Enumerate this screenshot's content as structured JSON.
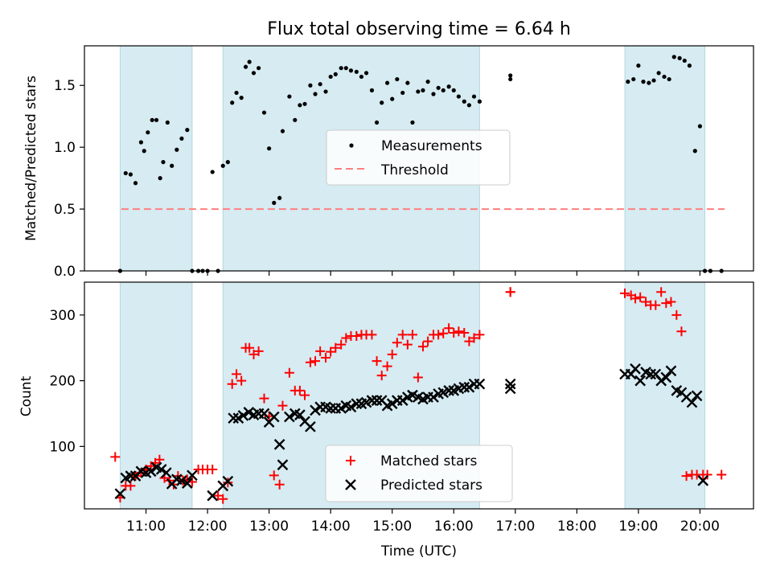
{
  "title": "Flux total observing time = 6.64 h",
  "chart_data": [
    {
      "type": "scatter",
      "panel": "top",
      "ylabel": "Matched/Predicted stars",
      "ylim": [
        0,
        1.82
      ],
      "yticks": [
        0.0,
        0.5,
        1.0,
        1.5
      ],
      "ytick_labels": [
        "0.0",
        "0.5",
        "1.0",
        "1.5"
      ],
      "threshold": {
        "value": 0.5,
        "x_start": 10.6,
        "x_end": 20.4,
        "color": "#ff7f7f"
      },
      "legend": {
        "position": "center",
        "entries": [
          {
            "label": "Measurements",
            "marker": "dot"
          },
          {
            "label": "Threshold",
            "marker": "dashed-line"
          }
        ]
      },
      "series": [
        {
          "name": "Measurements",
          "color": "#000000",
          "marker": "dot",
          "x": [
            10.58,
            10.67,
            10.75,
            10.83,
            10.92,
            10.97,
            11.03,
            11.1,
            11.17,
            11.23,
            11.28,
            11.35,
            11.42,
            11.5,
            11.58,
            11.67,
            11.75,
            11.85,
            11.92,
            12.0,
            12.08,
            12.17,
            12.25,
            12.33,
            12.4,
            12.47,
            12.55,
            12.62,
            12.68,
            12.75,
            12.83,
            12.92,
            13.0,
            13.08,
            13.17,
            13.22,
            13.33,
            13.42,
            13.5,
            13.58,
            13.67,
            13.75,
            13.83,
            13.92,
            14.0,
            14.08,
            14.17,
            14.25,
            14.33,
            14.42,
            14.5,
            14.58,
            14.67,
            14.75,
            14.83,
            14.92,
            15.0,
            15.08,
            15.17,
            15.25,
            15.33,
            15.42,
            15.5,
            15.58,
            15.67,
            15.75,
            15.83,
            15.92,
            16.0,
            16.08,
            16.17,
            16.25,
            16.33,
            16.42,
            16.92,
            16.92,
            18.83,
            18.92,
            19.0,
            19.08,
            19.17,
            19.25,
            19.33,
            19.42,
            19.5,
            19.58,
            19.67,
            19.75,
            19.83,
            19.92,
            20.0,
            20.08,
            20.17,
            20.35
          ],
          "y": [
            0.0,
            0.79,
            0.78,
            0.71,
            1.04,
            0.97,
            1.12,
            1.22,
            1.22,
            0.75,
            0.88,
            1.2,
            0.85,
            0.98,
            1.07,
            1.14,
            0.0,
            0.0,
            0.0,
            0.0,
            0.8,
            0.0,
            0.85,
            0.88,
            1.36,
            1.44,
            1.4,
            1.65,
            1.69,
            1.6,
            1.64,
            1.28,
            0.99,
            0.55,
            0.59,
            1.13,
            1.41,
            1.22,
            1.34,
            1.35,
            1.5,
            1.43,
            1.51,
            1.45,
            1.57,
            1.59,
            1.64,
            1.64,
            1.62,
            1.61,
            1.57,
            1.6,
            1.46,
            1.2,
            1.36,
            1.52,
            1.39,
            1.55,
            1.44,
            1.52,
            1.2,
            1.45,
            1.46,
            1.53,
            1.43,
            1.48,
            1.46,
            1.49,
            1.46,
            1.41,
            1.37,
            1.34,
            1.41,
            1.37,
            1.58,
            1.55,
            1.53,
            1.55,
            1.66,
            1.53,
            1.52,
            1.54,
            1.6,
            1.57,
            1.55,
            1.73,
            1.72,
            1.7,
            1.66,
            0.97,
            1.17,
            0.0,
            0.0,
            0.0
          ]
        }
      ],
      "bands": [
        [
          10.58,
          11.75
        ],
        [
          12.25,
          16.42
        ],
        [
          18.78,
          20.08
        ]
      ]
    },
    {
      "type": "scatter",
      "panel": "bottom",
      "xlabel": "Time (UTC)",
      "ylabel": "Count",
      "xlim": [
        10.0,
        20.87
      ],
      "ylim": [
        5,
        350
      ],
      "xticks": [
        11,
        12,
        13,
        14,
        15,
        16,
        17,
        18,
        19,
        20
      ],
      "xtick_labels": [
        "11:00",
        "12:00",
        "13:00",
        "14:00",
        "15:00",
        "16:00",
        "17:00",
        "18:00",
        "19:00",
        "20:00"
      ],
      "yticks": [
        100,
        200,
        300
      ],
      "ytick_labels": [
        "100",
        "200",
        "300"
      ],
      "legend": {
        "position": "center",
        "entries": [
          {
            "label": "Matched stars",
            "marker": "plus",
            "color": "#ff0000"
          },
          {
            "label": "Predicted stars",
            "marker": "x",
            "color": "#000000"
          }
        ]
      },
      "series": [
        {
          "name": "Matched stars",
          "color": "#ff0000",
          "marker": "plus",
          "x": [
            10.5,
            10.58,
            10.67,
            10.75,
            10.83,
            10.92,
            11.0,
            11.08,
            11.15,
            11.22,
            11.3,
            11.38,
            11.45,
            11.52,
            11.6,
            11.67,
            11.75,
            11.85,
            11.92,
            12.0,
            12.08,
            12.17,
            12.25,
            12.33,
            12.4,
            12.47,
            12.55,
            12.62,
            12.68,
            12.75,
            12.83,
            12.92,
            13.0,
            13.08,
            13.17,
            13.22,
            13.33,
            13.42,
            13.5,
            13.58,
            13.67,
            13.75,
            13.83,
            13.92,
            14.0,
            14.08,
            14.17,
            14.25,
            14.33,
            14.42,
            14.5,
            14.58,
            14.67,
            14.75,
            14.83,
            14.92,
            15.0,
            15.08,
            15.17,
            15.25,
            15.33,
            15.42,
            15.5,
            15.58,
            15.67,
            15.75,
            15.83,
            15.92,
            16.0,
            16.08,
            16.17,
            16.25,
            16.33,
            16.42,
            16.92,
            16.92,
            18.78,
            18.88,
            18.95,
            19.03,
            19.12,
            19.2,
            19.28,
            19.37,
            19.45,
            19.53,
            19.62,
            19.7,
            19.78,
            19.87,
            19.95,
            20.05,
            20.12,
            20.35
          ],
          "y": [
            84,
            22,
            40,
            40,
            55,
            60,
            65,
            70,
            75,
            80,
            52,
            48,
            42,
            55,
            48,
            50,
            46,
            65,
            65,
            65,
            65,
            25,
            20,
            45,
            195,
            210,
            200,
            250,
            250,
            240,
            245,
            173,
            146,
            56,
            42,
            162,
            212,
            185,
            185,
            178,
            228,
            230,
            245,
            235,
            244,
            250,
            255,
            265,
            268,
            268,
            270,
            270,
            270,
            230,
            208,
            222,
            240,
            258,
            270,
            255,
            270,
            205,
            252,
            260,
            270,
            270,
            272,
            280,
            273,
            275,
            273,
            260,
            265,
            270,
            335,
            335,
            333,
            330,
            325,
            327,
            320,
            315,
            315,
            335,
            318,
            320,
            300,
            275,
            55,
            57,
            57,
            57,
            57,
            57
          ],
          "y_note": "readings"
        },
        {
          "name": "Predicted stars",
          "color": "#000000",
          "marker": "x",
          "x": [
            10.58,
            10.67,
            10.75,
            10.83,
            10.92,
            11.0,
            11.08,
            11.17,
            11.25,
            11.33,
            11.42,
            11.5,
            11.58,
            11.67,
            11.75,
            12.08,
            12.25,
            12.33,
            12.42,
            12.5,
            12.58,
            12.67,
            12.75,
            12.83,
            12.92,
            13.0,
            13.08,
            13.17,
            13.22,
            13.33,
            13.42,
            13.5,
            13.58,
            13.67,
            13.75,
            13.83,
            13.92,
            14.0,
            14.08,
            14.17,
            14.25,
            14.33,
            14.42,
            14.5,
            14.58,
            14.67,
            14.75,
            14.83,
            14.92,
            15.0,
            15.08,
            15.17,
            15.25,
            15.33,
            15.42,
            15.5,
            15.58,
            15.67,
            15.75,
            15.83,
            15.92,
            16.0,
            16.08,
            16.17,
            16.25,
            16.33,
            16.42,
            16.92,
            16.92,
            18.78,
            18.88,
            18.95,
            19.03,
            19.12,
            19.2,
            19.28,
            19.37,
            19.45,
            19.53,
            19.62,
            19.7,
            19.78,
            19.87,
            19.95,
            20.05
          ],
          "y": [
            28,
            52,
            55,
            55,
            62,
            60,
            62,
            68,
            65,
            60,
            43,
            50,
            48,
            44,
            56,
            25,
            40,
            47,
            143,
            143,
            147,
            152,
            148,
            150,
            150,
            137,
            145,
            103,
            72,
            145,
            150,
            148,
            138,
            130,
            155,
            160,
            160,
            158,
            158,
            158,
            162,
            160,
            165,
            165,
            167,
            170,
            170,
            170,
            162,
            165,
            170,
            170,
            175,
            178,
            175,
            172,
            175,
            175,
            180,
            182,
            185,
            185,
            188,
            190,
            190,
            195,
            195,
            188,
            195,
            210,
            210,
            218,
            200,
            213,
            210,
            210,
            200,
            205,
            215,
            185,
            182,
            175,
            167,
            177,
            48
          ]
        }
      ],
      "bands": [
        [
          10.58,
          11.75
        ],
        [
          12.25,
          16.42
        ],
        [
          18.78,
          20.08
        ]
      ]
    }
  ]
}
